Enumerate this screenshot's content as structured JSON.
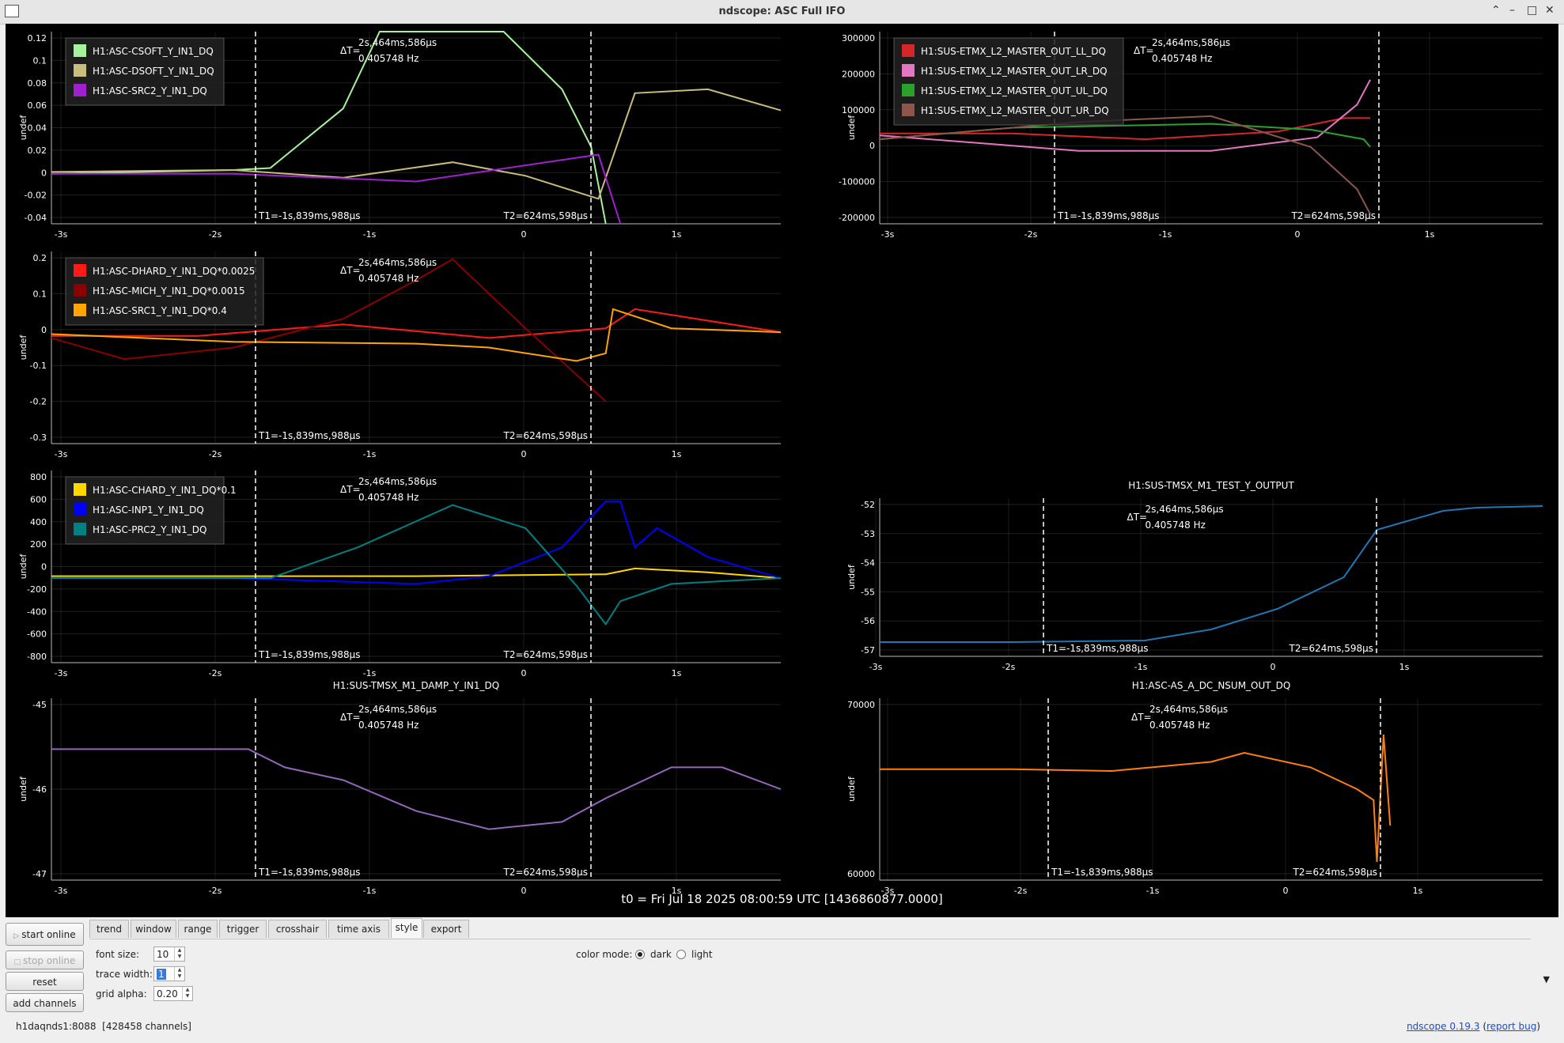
{
  "window": {
    "title": "ndscope: ASC Full IFO"
  },
  "cursors": {
    "dt_label": "ΔT=",
    "dt_value": "2s,464ms,586µs",
    "dt_freq": "0.405748 Hz",
    "t1": "T1=-1s,839ms,988µs",
    "t2": "T2=624ms,598µs"
  },
  "t0_label": "t0 = Fri Jul 18 2025 08:00:59 UTC [1436860877.0000]",
  "plots": [
    {
      "id": "p1",
      "title": "",
      "ylabel": "undef",
      "yticks": [
        "0.12",
        "0.1",
        "0.08",
        "0.06",
        "0.04",
        "0.02",
        "0",
        "-0.02",
        "-0.04"
      ],
      "xticks": [
        "-3s",
        "-2s",
        "-1s",
        "0",
        "1s"
      ],
      "legend": [
        {
          "label": "H1:ASC-CSOFT_Y_IN1_DQ",
          "color": "#a4f39a"
        },
        {
          "label": "H1:ASC-DSOFT_Y_IN1_DQ",
          "color": "#c8bd7a"
        },
        {
          "label": "H1:ASC-SRC2_Y_IN1_DQ",
          "color": "#a020d0"
        }
      ]
    },
    {
      "id": "p2",
      "title": "",
      "ylabel": "undef",
      "yticks": [
        "300000",
        "200000",
        "100000",
        "0",
        "-100000",
        "-200000"
      ],
      "xticks": [
        "-3s",
        "-2s",
        "-1s",
        "0",
        "1s"
      ],
      "legend": [
        {
          "label": "H1:SUS-ETMX_L2_MASTER_OUT_LL_DQ",
          "color": "#d62728"
        },
        {
          "label": "H1:SUS-ETMX_L2_MASTER_OUT_LR_DQ",
          "color": "#e377c2"
        },
        {
          "label": "H1:SUS-ETMX_L2_MASTER_OUT_UL_DQ",
          "color": "#2ca02c"
        },
        {
          "label": "H1:SUS-ETMX_L2_MASTER_OUT_UR_DQ",
          "color": "#8c564b"
        }
      ]
    },
    {
      "id": "p3",
      "title": "",
      "ylabel": "undef",
      "yticks": [
        "0.2",
        "0.1",
        "0",
        "-0.1",
        "-0.2",
        "-0.3"
      ],
      "xticks": [
        "-3s",
        "-2s",
        "-1s",
        "0",
        "1s"
      ],
      "legend": [
        {
          "label": "H1:ASC-DHARD_Y_IN1_DQ*0.0025",
          "color": "#ff1a1a"
        },
        {
          "label": "H1:ASC-MICH_Y_IN1_DQ*0.0015",
          "color": "#8b0000"
        },
        {
          "label": "H1:ASC-SRC1_Y_IN1_DQ*0.4",
          "color": "#ffa500"
        }
      ]
    },
    {
      "id": "p4",
      "title": "",
      "ylabel": "undef",
      "yticks": [
        "800",
        "600",
        "400",
        "200",
        "0",
        "-200",
        "-400",
        "-600",
        "-800"
      ],
      "xticks": [
        "-3s",
        "-2s",
        "-1s",
        "0",
        "1s"
      ],
      "legend": [
        {
          "label": "H1:ASC-CHARD_Y_IN1_DQ*0.1",
          "color": "#ffd700"
        },
        {
          "label": "H1:ASC-INP1_Y_IN1_DQ",
          "color": "#0000ff"
        },
        {
          "label": "H1:ASC-PRC2_Y_IN1_DQ",
          "color": "#008080"
        }
      ]
    },
    {
      "id": "p5",
      "title": "H1:SUS-TMSX_M1_TEST_Y_OUTPUT",
      "ylabel": "undef",
      "yticks": [
        "-52",
        "-53",
        "-54",
        "-55",
        "-56",
        "-57"
      ],
      "xticks": [
        "-3s",
        "-2s",
        "-1s",
        "0",
        "1s"
      ],
      "legend": [],
      "color": "#1f77b4"
    },
    {
      "id": "p6",
      "title": "H1:SUS-TMSX_M1_DAMP_Y_IN1_DQ",
      "ylabel": "undef",
      "yticks": [
        "-45",
        "-46",
        "-47"
      ],
      "xticks": [
        "-3s",
        "-2s",
        "-1s",
        "0",
        "1s"
      ],
      "legend": [],
      "color": "#9467bd"
    },
    {
      "id": "p7",
      "title": "H1:ASC-AS_A_DC_NSUM_OUT_DQ",
      "ylabel": "undef",
      "yticks": [
        "70000",
        "60000"
      ],
      "xticks": [
        "-3s",
        "-2s",
        "-1s",
        "0",
        "1s"
      ],
      "legend": [],
      "color": "#ff7f0e"
    }
  ],
  "controls": {
    "start_online": "start online",
    "stop_online": "stop online",
    "reset": "reset",
    "add_channels": "add channels",
    "tabs": [
      "trend",
      "window",
      "range",
      "trigger",
      "crosshair",
      "time axis",
      "style",
      "export"
    ],
    "active_tab": "style",
    "font_size_label": "font size:",
    "font_size": "10",
    "trace_width_label": "trace width:",
    "trace_width": "1",
    "grid_alpha_label": "grid alpha:",
    "grid_alpha": "0.20",
    "color_mode_label": "color mode:",
    "mode_dark": "dark",
    "mode_light": "light"
  },
  "status": {
    "server": "h1daqnds1:8088",
    "channels": "[428458 channels]",
    "app": "ndscope",
    "version": "0.19.3",
    "bug_prefix": "(",
    "bug_link": "report bug",
    "bug_suffix": ")"
  }
}
